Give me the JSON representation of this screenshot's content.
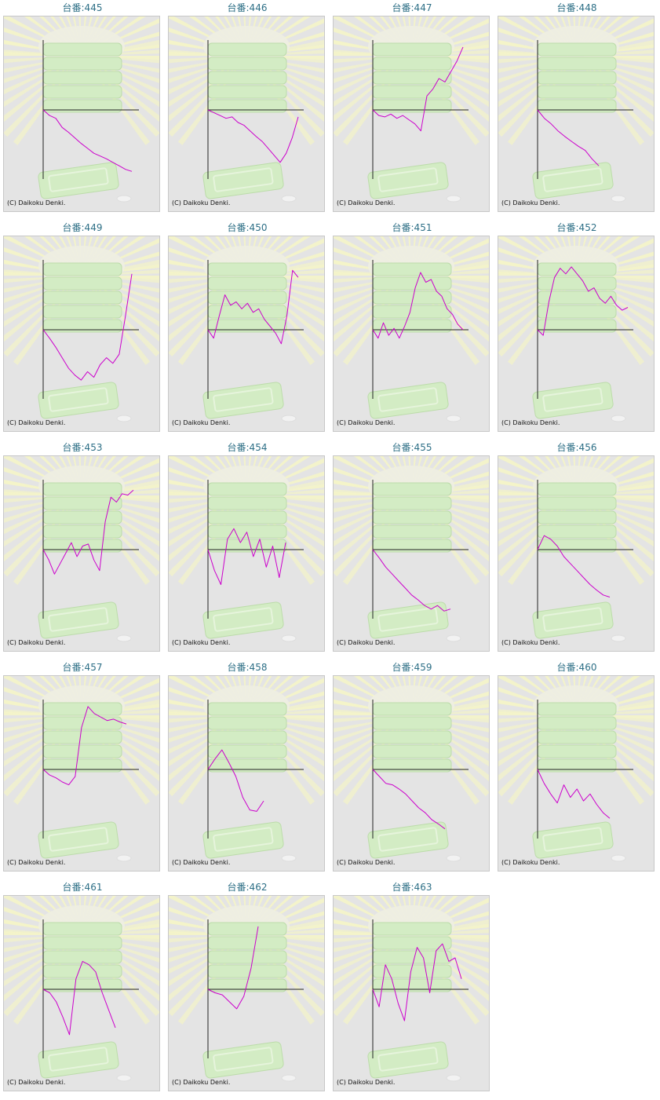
{
  "copyright": "(C) Daikoku Denki.",
  "colors": {
    "line": "#cc00cc",
    "title": "#2d6f86",
    "axis": "#222222",
    "panel": "#e4e4e4",
    "ray": "#f4f4c8",
    "machine": "#d3ecc4"
  },
  "chart_data": [
    {
      "type": "line",
      "title": "台番:445",
      "y": [
        0,
        -8,
        -12,
        -25,
        -32,
        -40,
        -48,
        -55,
        -62,
        -66,
        -70,
        -75,
        -80,
        -85,
        -88
      ]
    },
    {
      "type": "line",
      "title": "台番:446",
      "y": [
        0,
        -4,
        -8,
        -12,
        -10,
        -18,
        -22,
        -30,
        -38,
        -45,
        -55,
        -65,
        -75,
        -62,
        -40,
        -10
      ]
    },
    {
      "type": "line",
      "title": "台番:447",
      "y": [
        0,
        -8,
        -10,
        -6,
        -12,
        -8,
        -14,
        -20,
        -30,
        20,
        30,
        45,
        40,
        55,
        70,
        90
      ]
    },
    {
      "type": "line",
      "title": "台番:448",
      "y": [
        0,
        -12,
        -20,
        -30,
        -38,
        -45,
        -52,
        -58,
        -70,
        -80
      ]
    },
    {
      "type": "line",
      "title": "台番:449",
      "y": [
        0,
        -12,
        -25,
        -40,
        -55,
        -65,
        -72,
        -60,
        -68,
        -50,
        -40,
        -48,
        -35,
        20,
        80
      ]
    },
    {
      "type": "line",
      "title": "台番:450",
      "y": [
        0,
        -12,
        20,
        50,
        35,
        40,
        30,
        38,
        25,
        30,
        15,
        5,
        -5,
        -20,
        20,
        85,
        75
      ]
    },
    {
      "type": "line",
      "title": "台番:451",
      "y": [
        0,
        -12,
        10,
        -8,
        2,
        -12,
        5,
        25,
        60,
        82,
        68,
        72,
        55,
        48,
        30,
        22,
        8,
        0
      ]
    },
    {
      "type": "line",
      "title": "台番:452",
      "y": [
        0,
        -8,
        40,
        75,
        88,
        80,
        90,
        80,
        70,
        55,
        60,
        45,
        38,
        48,
        35,
        28,
        32
      ]
    },
    {
      "type": "line",
      "title": "台番:453",
      "y": [
        0,
        -15,
        -35,
        -20,
        -5,
        10,
        -10,
        5,
        8,
        -15,
        -30,
        40,
        75,
        68,
        80,
        78,
        85
      ]
    },
    {
      "type": "line",
      "title": "台番:454",
      "y": [
        0,
        -30,
        -50,
        15,
        30,
        10,
        25,
        -10,
        15,
        -25,
        5,
        -40,
        10
      ]
    },
    {
      "type": "line",
      "title": "台番:455",
      "y": [
        0,
        -12,
        -25,
        -35,
        -45,
        -55,
        -65,
        -72,
        -80,
        -85,
        -80,
        -88,
        -85
      ]
    },
    {
      "type": "line",
      "title": "台番:456",
      "y": [
        0,
        20,
        15,
        5,
        -10,
        -20,
        -30,
        -40,
        -50,
        -58,
        -65,
        -68
      ]
    },
    {
      "type": "line",
      "title": "台番:457",
      "y": [
        0,
        -8,
        -12,
        -18,
        -22,
        -10,
        60,
        90,
        80,
        75,
        70,
        72,
        68,
        65
      ]
    },
    {
      "type": "line",
      "title": "台番:458",
      "y": [
        0,
        15,
        28,
        10,
        -10,
        -40,
        -58,
        -60,
        -45
      ]
    },
    {
      "type": "line",
      "title": "台番:459",
      "y": [
        0,
        -10,
        -20,
        -22,
        -28,
        -35,
        -45,
        -55,
        -62,
        -72,
        -78,
        -85
      ]
    },
    {
      "type": "line",
      "title": "台番:460",
      "y": [
        0,
        -20,
        -35,
        -48,
        -22,
        -40,
        -28,
        -45,
        -35,
        -50,
        -62,
        -70
      ]
    },
    {
      "type": "line",
      "title": "台番:461",
      "y": [
        0,
        -5,
        -18,
        -40,
        -65,
        15,
        40,
        35,
        25,
        -5,
        -30,
        -55
      ]
    },
    {
      "type": "line",
      "title": "台番:462",
      "y": [
        0,
        -5,
        -8,
        -18,
        -28,
        -10,
        30,
        90
      ]
    },
    {
      "type": "line",
      "title": "台番:463",
      "y": [
        0,
        -25,
        35,
        15,
        -20,
        -45,
        25,
        60,
        45,
        -5,
        55,
        65,
        40,
        45,
        15
      ]
    }
  ]
}
